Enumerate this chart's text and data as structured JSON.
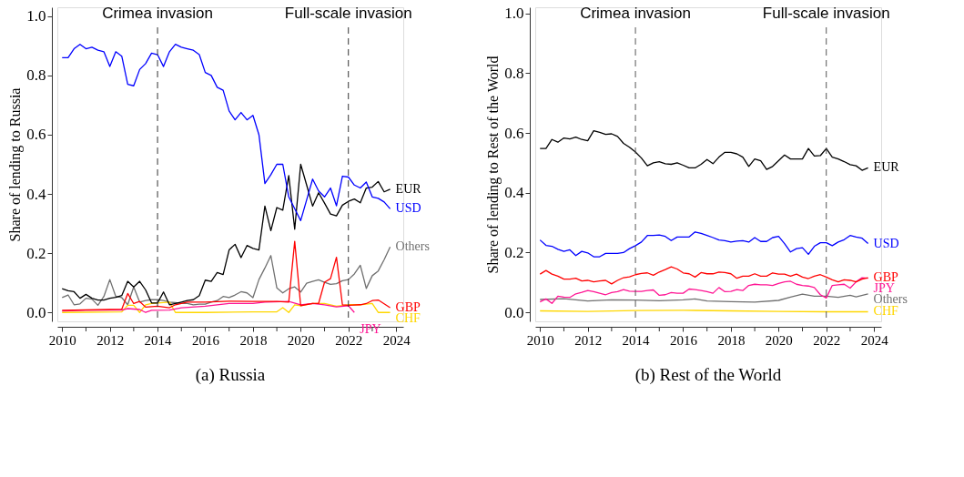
{
  "chart_data": [
    {
      "type": "line",
      "title": "(a) Russia",
      "ylabel": "Share of lending to Russia",
      "grid": false,
      "legend": false,
      "line_style": "solid",
      "xlim": [
        2009.8,
        2024.3
      ],
      "ylim": [
        -0.03,
        1.03
      ],
      "xticks": [
        2010,
        {
          "value": 2011,
          "label": null
        },
        2012,
        {
          "value": 2013,
          "label": null
        },
        2014,
        {
          "value": 2015,
          "label": null
        },
        2016,
        {
          "value": 2017,
          "label": null
        },
        2018,
        {
          "value": 2019,
          "label": null
        },
        2020,
        {
          "value": 2021,
          "label": null
        },
        2022,
        {
          "value": 2023,
          "label": null
        },
        2024
      ],
      "yticks": [
        {
          "value": 0,
          "label": "0.0"
        },
        {
          "value": 0.2,
          "label": "0.2"
        },
        {
          "value": 0.4,
          "label": "0.4"
        },
        {
          "value": 0.6,
          "label": "0.6"
        },
        {
          "value": 0.8,
          "label": "0.8"
        },
        {
          "value": 1,
          "label": "1.0"
        }
      ],
      "x": [
        2010,
        2010.25,
        2010.5,
        2010.75,
        2011,
        2011.25,
        2011.5,
        2011.75,
        2012,
        2012.25,
        2012.5,
        2012.75,
        2013,
        2013.25,
        2013.5,
        2013.75,
        2014,
        2014.25,
        2014.5,
        2014.75,
        2015,
        2015.25,
        2015.5,
        2015.75,
        2016,
        2016.25,
        2016.5,
        2016.75,
        2017,
        2017.25,
        2017.5,
        2017.75,
        2018,
        2018.25,
        2018.5,
        2018.75,
        2019,
        2019.25,
        2019.5,
        2019.75,
        2020,
        2020.25,
        2020.5,
        2020.75,
        2021,
        2021.25,
        2021.5,
        2021.75,
        2022,
        2022.25,
        2022.5,
        2022.75,
        2023,
        2023.25,
        2023.5,
        2023.75
      ],
      "series": [
        {
          "name": "Others",
          "color": "#707070",
          "values": [
            0.05,
            0.059,
            0.026,
            0.029,
            0.048,
            0.045,
            0.024,
            0.054,
            0.111,
            0.054,
            0.05,
            0.026,
            0.086,
            0.035,
            0.04,
            0.043,
            0.043,
            0.04,
            0.035,
            0.033,
            0.03,
            0.03,
            0.026,
            0.028,
            0.028,
            0.035,
            0.04,
            0.054,
            0.05,
            0.059,
            0.07,
            0.066,
            0.05,
            0.111,
            0.15,
            0.192,
            0.083,
            0.066,
            0.08,
            0.086,
            0.069,
            0.099,
            0.105,
            0.11,
            0.102,
            0.095,
            0.097,
            0.107,
            0.111,
            0.13,
            0.159,
            0.081,
            0.124,
            0.14,
            0.178,
            0.221
          ]
        },
        {
          "name": "CHF",
          "color": "#ffd700",
          "x": [
            2010,
            2012.5,
            2012.75,
            2013,
            2013.25,
            2013.5,
            2013.75,
            2014,
            2014.5,
            2014.75,
            2016,
            2018,
            2019,
            2019.25,
            2019.5,
            2019.75,
            2020,
            2020.5,
            2021,
            2021.5,
            2022,
            2022.5,
            2023,
            2023.25,
            2023.75
          ],
          "values": [
            0,
            0.002,
            0.024,
            0.024,
            0,
            0.026,
            0.03,
            0.032,
            0.035,
            0,
            0,
            0.002,
            0.002,
            0.016,
            0,
            0.026,
            0.023,
            0.03,
            0.03,
            0.021,
            0.026,
            0.026,
            0.03,
            0,
            0
          ]
        },
        {
          "name": "JPY",
          "color": "#ff1493",
          "x": [
            2010,
            2011,
            2012,
            2012.5,
            2012.75,
            2013.25,
            2013.5,
            2013.75,
            2014.5,
            2015,
            2016,
            2016.5,
            2017,
            2018,
            2018.5,
            2019.5,
            2020,
            2020.5,
            2021,
            2021.5,
            2022,
            2022.25
          ],
          "values": [
            0.005,
            0.007,
            0.008,
            0.008,
            0.013,
            0.01,
            0.0,
            0.007,
            0.008,
            0.016,
            0.021,
            0.026,
            0.03,
            0.03,
            0.035,
            0.037,
            0.026,
            0.03,
            0.026,
            0.019,
            0.023,
            0.0
          ]
        },
        {
          "name": "GBP",
          "color": "#ff0000",
          "x": [
            2010,
            2011,
            2012,
            2012.5,
            2012.75,
            2013,
            2013.25,
            2013.5,
            2014,
            2014.5,
            2014.75,
            2015.25,
            2016,
            2017,
            2018,
            2019,
            2019.5,
            2019.75,
            2020,
            2020.5,
            2020.75,
            2021,
            2021.25,
            2021.5,
            2021.75,
            2022,
            2022.5,
            2022.75,
            2023,
            2023.25,
            2023.75
          ],
          "values": [
            0.007,
            0.009,
            0.01,
            0.011,
            0.064,
            0.03,
            0.037,
            0.018,
            0.021,
            0.016,
            0.026,
            0.035,
            0.035,
            0.038,
            0.037,
            0.037,
            0.035,
            0.24,
            0.023,
            0.03,
            0.03,
            0.102,
            0.114,
            0.186,
            0.026,
            0.024,
            0.026,
            0.03,
            0.04,
            0.042,
            0.016
          ]
        },
        {
          "name": "EUR",
          "color": "#000000",
          "values": [
            0.08,
            0.073,
            0.07,
            0.048,
            0.061,
            0.048,
            0.042,
            0.042,
            0.048,
            0.051,
            0.057,
            0.105,
            0.086,
            0.105,
            0.076,
            0.032,
            0.032,
            0.069,
            0.026,
            0.03,
            0.035,
            0.04,
            0.043,
            0.057,
            0.109,
            0.105,
            0.135,
            0.128,
            0.211,
            0.23,
            0.185,
            0.226,
            0.216,
            0.211,
            0.359,
            0.276,
            0.354,
            0.345,
            0.462,
            0.281,
            0.5,
            0.43,
            0.359,
            0.404,
            0.369,
            0.332,
            0.326,
            0.362,
            0.375,
            0.383,
            0.37,
            0.42,
            0.423,
            0.442,
            0.407,
            0.416
          ]
        },
        {
          "name": "USD",
          "color": "#0000ff",
          "values": [
            0.86,
            0.86,
            0.89,
            0.905,
            0.89,
            0.895,
            0.885,
            0.88,
            0.83,
            0.88,
            0.865,
            0.77,
            0.765,
            0.82,
            0.84,
            0.875,
            0.87,
            0.83,
            0.88,
            0.905,
            0.895,
            0.89,
            0.885,
            0.87,
            0.81,
            0.8,
            0.76,
            0.75,
            0.68,
            0.65,
            0.675,
            0.65,
            0.665,
            0.6,
            0.435,
            0.465,
            0.5,
            0.5,
            0.39,
            0.35,
            0.31,
            0.38,
            0.45,
            0.41,
            0.39,
            0.42,
            0.36,
            0.46,
            0.457,
            0.43,
            0.42,
            0.44,
            0.39,
            0.385,
            0.373,
            0.35
          ]
        }
      ],
      "ref_lines": [
        {
          "axis": "x",
          "value": 2014,
          "label": "Crimea invasion",
          "color": "#333333",
          "line_style": "dashed"
        },
        {
          "axis": "x",
          "value": 2022,
          "label": "Full-scale invasion",
          "color": "#333333",
          "line_style": "dashed"
        }
      ]
    },
    {
      "type": "line",
      "title": "(b) Rest of the World",
      "ylabel": "Share of lending to Rest of the World",
      "grid": false,
      "legend": false,
      "line_style": "solid",
      "xlim": [
        2009.8,
        2024.3
      ],
      "ylim": [
        -0.03,
        1.02
      ],
      "xticks": [
        2010,
        {
          "value": 2011,
          "label": null
        },
        2012,
        {
          "value": 2013,
          "label": null
        },
        2014,
        {
          "value": 2015,
          "label": null
        },
        2016,
        {
          "value": 2017,
          "label": null
        },
        2018,
        {
          "value": 2019,
          "label": null
        },
        2020,
        {
          "value": 2021,
          "label": null
        },
        2022,
        {
          "value": 2023,
          "label": null
        },
        2024
      ],
      "yticks": [
        {
          "value": 0,
          "label": "0.0"
        },
        {
          "value": 0.2,
          "label": "0.2"
        },
        {
          "value": 0.4,
          "label": "0.4"
        },
        {
          "value": 0.6,
          "label": "0.6"
        },
        {
          "value": 0.8,
          "label": "0.8"
        },
        {
          "value": 1,
          "label": "1.0"
        }
      ],
      "x": [
        2010,
        2010.25,
        2010.5,
        2010.75,
        2011,
        2011.25,
        2011.5,
        2011.75,
        2012,
        2012.25,
        2012.5,
        2012.75,
        2013,
        2013.25,
        2013.5,
        2013.75,
        2014,
        2014.25,
        2014.5,
        2014.75,
        2015,
        2015.25,
        2015.5,
        2015.75,
        2016,
        2016.25,
        2016.5,
        2016.75,
        2017,
        2017.25,
        2017.5,
        2017.75,
        2018,
        2018.25,
        2018.5,
        2018.75,
        2019,
        2019.25,
        2019.5,
        2019.75,
        2020,
        2020.25,
        2020.5,
        2020.75,
        2021,
        2021.25,
        2021.5,
        2021.75,
        2022,
        2022.25,
        2022.5,
        2022.75,
        2023,
        2023.25,
        2023.5,
        2023.75
      ],
      "series": [
        {
          "name": "CHF",
          "color": "#ffd700",
          "x": [
            2010,
            2012,
            2014,
            2016,
            2018,
            2020,
            2022,
            2023.75
          ],
          "values": [
            0.005,
            0.003,
            0.006,
            0.007,
            0.005,
            0.003,
            0.002,
            0.002
          ]
        },
        {
          "name": "Others",
          "color": "#707070",
          "x": [
            2010,
            2011,
            2012,
            2013,
            2014,
            2015,
            2016,
            2016.5,
            2017,
            2018,
            2019,
            2020,
            2020.5,
            2021,
            2021.5,
            2022,
            2022.5,
            2023,
            2023.25,
            2023.75
          ],
          "values": [
            0.043,
            0.046,
            0.038,
            0.042,
            0.041,
            0.039,
            0.042,
            0.045,
            0.038,
            0.036,
            0.034,
            0.04,
            0.051,
            0.061,
            0.054,
            0.054,
            0.05,
            0.057,
            0.052,
            0.062
          ]
        },
        {
          "name": "JPY",
          "color": "#ff1493",
          "values": [
            0.035,
            0.045,
            0.03,
            0.054,
            0.051,
            0.05,
            0.062,
            0.067,
            0.073,
            0.069,
            0.064,
            0.059,
            0.066,
            0.069,
            0.076,
            0.071,
            0.07,
            0.07,
            0.073,
            0.075,
            0.057,
            0.059,
            0.066,
            0.064,
            0.064,
            0.078,
            0.076,
            0.073,
            0.069,
            0.064,
            0.083,
            0.069,
            0.07,
            0.076,
            0.073,
            0.09,
            0.094,
            0.092,
            0.092,
            0.09,
            0.097,
            0.102,
            0.104,
            0.094,
            0.09,
            0.088,
            0.083,
            0.059,
            0.048,
            0.09,
            0.092,
            0.094,
            0.081,
            0.102,
            0.116,
            0.114
          ]
        },
        {
          "name": "GBP",
          "color": "#ff0000",
          "values": [
            0.128,
            0.14,
            0.128,
            0.121,
            0.111,
            0.111,
            0.114,
            0.105,
            0.107,
            0.102,
            0.105,
            0.107,
            0.095,
            0.107,
            0.116,
            0.119,
            0.126,
            0.13,
            0.132,
            0.124,
            0.135,
            0.143,
            0.152,
            0.145,
            0.132,
            0.129,
            0.118,
            0.133,
            0.129,
            0.129,
            0.135,
            0.133,
            0.129,
            0.114,
            0.121,
            0.121,
            0.129,
            0.121,
            0.121,
            0.132,
            0.128,
            0.128,
            0.121,
            0.128,
            0.118,
            0.113,
            0.121,
            0.126,
            0.118,
            0.109,
            0.102,
            0.109,
            0.107,
            0.102,
            0.111,
            0.116
          ]
        },
        {
          "name": "USD",
          "color": "#0000ff",
          "values": [
            0.242,
            0.224,
            0.221,
            0.211,
            0.204,
            0.209,
            0.19,
            0.204,
            0.199,
            0.186,
            0.186,
            0.197,
            0.197,
            0.197,
            0.2,
            0.213,
            0.223,
            0.235,
            0.257,
            0.257,
            0.259,
            0.254,
            0.24,
            0.252,
            0.252,
            0.252,
            0.269,
            0.264,
            0.257,
            0.25,
            0.242,
            0.24,
            0.235,
            0.238,
            0.24,
            0.235,
            0.25,
            0.237,
            0.237,
            0.25,
            0.254,
            0.23,
            0.202,
            0.213,
            0.216,
            0.194,
            0.221,
            0.233,
            0.233,
            0.223,
            0.235,
            0.243,
            0.257,
            0.252,
            0.248,
            0.23
          ]
        },
        {
          "name": "EUR",
          "color": "#000000",
          "values": [
            0.548,
            0.548,
            0.578,
            0.569,
            0.583,
            0.58,
            0.586,
            0.578,
            0.574,
            0.607,
            0.602,
            0.595,
            0.597,
            0.588,
            0.565,
            0.552,
            0.536,
            0.516,
            0.49,
            0.5,
            0.504,
            0.497,
            0.495,
            0.5,
            0.492,
            0.483,
            0.483,
            0.495,
            0.511,
            0.497,
            0.519,
            0.535,
            0.535,
            0.53,
            0.519,
            0.488,
            0.513,
            0.507,
            0.478,
            0.488,
            0.507,
            0.526,
            0.513,
            0.513,
            0.513,
            0.548,
            0.523,
            0.524,
            0.548,
            0.519,
            0.513,
            0.504,
            0.494,
            0.49,
            0.475,
            0.483
          ]
        }
      ],
      "ref_lines": [
        {
          "axis": "x",
          "value": 2014,
          "label": "Crimea invasion",
          "color": "#555555",
          "line_style": "dashed"
        },
        {
          "axis": "x",
          "value": 2022,
          "label": "Full-scale invasion",
          "color": "#555555",
          "line_style": "dashed"
        }
      ]
    }
  ]
}
